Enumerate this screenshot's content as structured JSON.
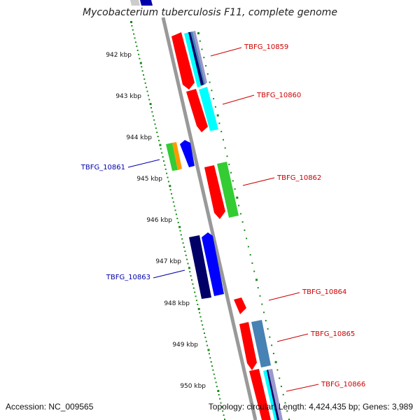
{
  "map": {
    "title": "Mycobacterium tuberculosis F11, complete genome",
    "ticks": [
      "942 kbp",
      "943 kbp",
      "944 kbp",
      "945 kbp",
      "946 kbp",
      "947 kbp",
      "948 kbp",
      "949 kbp",
      "950 kbp"
    ],
    "genes": [
      {
        "label": "TBFG_10859",
        "strand": "+",
        "color": "#cc0000"
      },
      {
        "label": "TBFG_10860",
        "strand": "+",
        "color": "#cc0000"
      },
      {
        "label": "TBFG_10861",
        "strand": "-",
        "color": "#0000aa"
      },
      {
        "label": "TBFG_10862",
        "strand": "+",
        "color": "#cc0000"
      },
      {
        "label": "TBFG_10863",
        "strand": "-",
        "color": "#0000aa"
      },
      {
        "label": "TBFG_10864",
        "strand": "+",
        "color": "#cc0000"
      },
      {
        "label": "TBFG_10865",
        "strand": "+",
        "color": "#cc0000"
      },
      {
        "label": "TBFG_10866",
        "strand": "+",
        "color": "#cc0000"
      }
    ],
    "colors": {
      "backbone": "#999999",
      "tick_dots": "#1a8a1a",
      "cds_forward": "#ff0000",
      "cds_reverse": "#0000ff",
      "navy": "#000066",
      "cyan": "#00ffff",
      "green": "#33cc33",
      "orange": "#ff9900",
      "steelblue": "#4682b4",
      "lavender": "#9999cc"
    }
  },
  "footer": {
    "accession": "Accession: NC_009565",
    "topology": "Topology: circular; Length: 4,424,435 bp; Genes: 3,989"
  }
}
